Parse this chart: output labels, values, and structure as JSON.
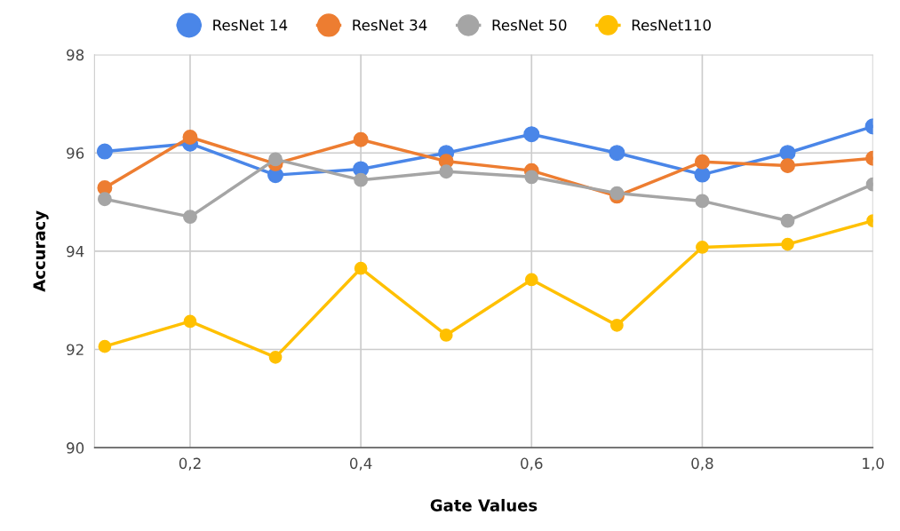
{
  "chart_data": {
    "type": "line",
    "xlabel": "Gate Values",
    "ylabel": "Accuracy",
    "x": [
      0.1,
      0.2,
      0.3,
      0.4,
      0.5,
      0.6,
      0.7,
      0.8,
      0.9,
      1.0
    ],
    "series": [
      {
        "name": "ResNet 14",
        "color": "#4a86e8",
        "values": [
          96.03,
          96.19,
          95.55,
          95.67,
          96.0,
          96.38,
          96.0,
          95.56,
          96.0,
          96.54
        ]
      },
      {
        "name": "ResNet 34",
        "color": "#ed7d31",
        "values": [
          95.29,
          96.32,
          95.78,
          96.27,
          95.83,
          95.64,
          95.12,
          95.82,
          95.74,
          95.89
        ]
      },
      {
        "name": "ResNet 50",
        "color": "#a5a5a5",
        "values": [
          95.06,
          94.7,
          95.87,
          95.45,
          95.62,
          95.51,
          95.18,
          95.02,
          94.62,
          95.36
        ]
      },
      {
        "name": "ResNet110",
        "color": "#ffc000",
        "values": [
          92.06,
          92.57,
          91.84,
          93.65,
          92.29,
          93.42,
          92.49,
          94.08,
          94.14,
          94.62
        ]
      }
    ],
    "xlim": [
      0.088,
      1.0
    ],
    "xticks": [
      {
        "value": 0.2,
        "label": "0,2"
      },
      {
        "value": 0.4,
        "label": "0,4"
      },
      {
        "value": 0.6,
        "label": "0,6"
      },
      {
        "value": 0.8,
        "label": "0,8"
      },
      {
        "value": 1.0,
        "label": "1,0"
      }
    ],
    "ylim": [
      90,
      98
    ],
    "yticks": [
      90,
      92,
      94,
      96,
      98
    ],
    "grid": true,
    "legend": "top",
    "marker": "circle",
    "line_style": "solid"
  }
}
